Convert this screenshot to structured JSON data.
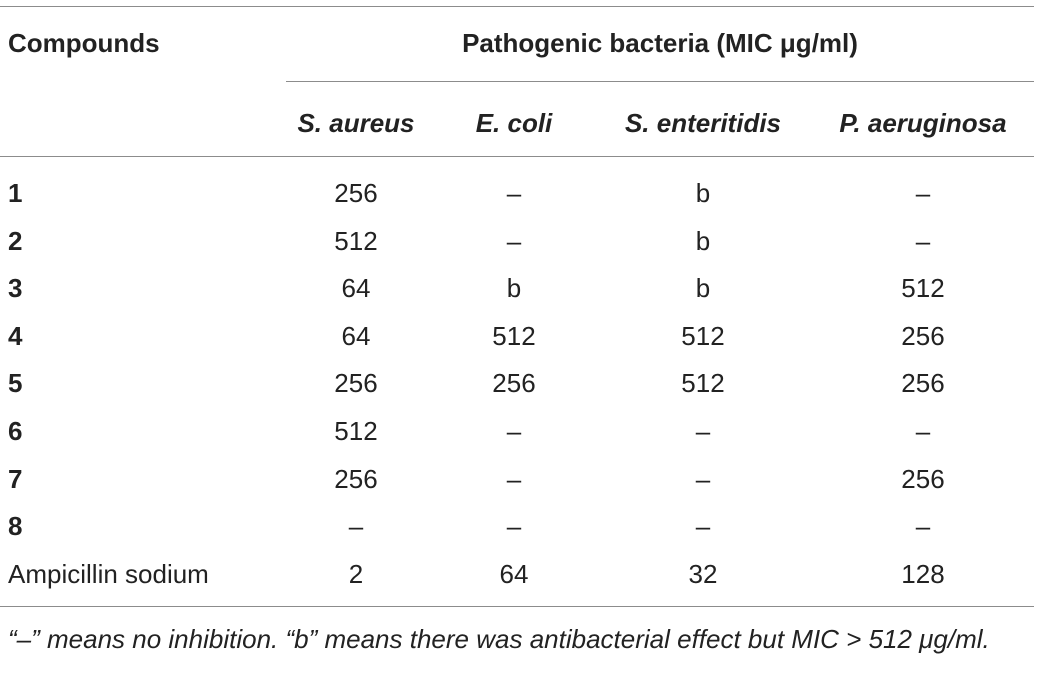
{
  "table": {
    "corner_header": "Compounds",
    "group_header": "Pathogenic bacteria (MIC μg/ml)",
    "columns": [
      "S. aureus",
      "E. coli",
      "S. enteritidis",
      "P. aeruginosa"
    ],
    "rows": [
      {
        "label": "1",
        "bold": true,
        "values": [
          "256",
          "–",
          "b",
          "–"
        ]
      },
      {
        "label": "2",
        "bold": true,
        "values": [
          "512",
          "–",
          "b",
          "–"
        ]
      },
      {
        "label": "3",
        "bold": true,
        "values": [
          "64",
          "b",
          "b",
          "512"
        ]
      },
      {
        "label": "4",
        "bold": true,
        "values": [
          "64",
          "512",
          "512",
          "256"
        ]
      },
      {
        "label": "5",
        "bold": true,
        "values": [
          "256",
          "256",
          "512",
          "256"
        ]
      },
      {
        "label": "6",
        "bold": true,
        "values": [
          "512",
          "–",
          "–",
          "–"
        ]
      },
      {
        "label": "7",
        "bold": true,
        "values": [
          "256",
          "–",
          "–",
          "256"
        ]
      },
      {
        "label": "8",
        "bold": true,
        "values": [
          "–",
          "–",
          "–",
          "–"
        ]
      },
      {
        "label": "Ampicillin sodium",
        "bold": false,
        "values": [
          "2",
          "64",
          "32",
          "128"
        ]
      }
    ],
    "footnote": "“–” means no inhibition. “b” means there was antibacterial effect but MIC > 512 μg/ml."
  }
}
